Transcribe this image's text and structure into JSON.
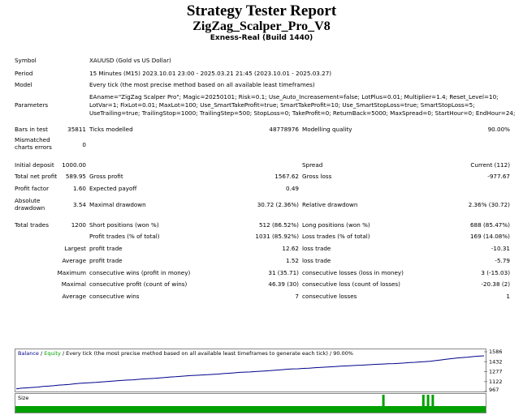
{
  "header": {
    "title": "Strategy Tester Report",
    "subtitle": "ZigZag_Scalper_Pro_V8",
    "server": "Exness-Real (Build 1440)"
  },
  "info": {
    "symbol_label": "Symbol",
    "symbol": "XAUUSD (Gold vs US Dollar)",
    "period_label": "Period",
    "period": "15 Minutes (M15) 2023.10.01 23:00 - 2025.03.21 21:45 (2023.10.01 - 2025.03.27)",
    "model_label": "Model",
    "model": "Every tick (the most precise method based on all available least timeframes)",
    "parameters_label": "Parameters",
    "parameters_line1": "EAname=\"ZigZag Scalper Pro\"; Magic=20250101; Risk=0.1; Use_Auto_Increasement=false; LotPlus=0.01; Multiplier=1.4; Reset_Level=10;",
    "parameters_line2": "LotVar=1; FixLot=0.01; MaxLot=100; Use_SmartTakeProfit=true; SmartTakeProfit=10; Use_SmartStopLoss=true; SmartStopLoss=5;",
    "parameters_line3": "UseTrailing=true; TrailingStop=1000; TrailingStep=500; StopLoss=0; TakeProfit=0; ReturnBack=5000; MaxSpread=0; StartHour=0; EndHour=24;"
  },
  "stats": {
    "bars_label": "Bars in test",
    "bars": "35811",
    "ticks_label": "Ticks modelled",
    "ticks": "48778976",
    "quality_label": "Modelling quality",
    "quality": "90.00%",
    "mismatched_label": "Mismatched charts errors",
    "mismatched": "0",
    "deposit_label": "Initial deposit",
    "deposit": "1000.00",
    "spread_label": "Spread",
    "spread": "Current (112)",
    "netprofit_label": "Total net profit",
    "netprofit": "589.95",
    "grossprofit_label": "Gross profit",
    "grossprofit": "1567.62",
    "grossloss_label": "Gross loss",
    "grossloss": "-977.67",
    "pf_label": "Profit factor",
    "pf": "1.60",
    "payoff_label": "Expected payoff",
    "payoff": "0.49",
    "absdd_label": "Absolute drawdown",
    "absdd": "3.54",
    "maxdd_label": "Maximal drawdown",
    "maxdd": "30.72 (2.36%)",
    "reldd_label": "Relative drawdown",
    "reldd": "2.36% (30.72)",
    "trades_label": "Total trades",
    "trades": "1200",
    "short_label": "Short positions (won %)",
    "short": "512 (86.52%)",
    "long_label": "Long positions (won %)",
    "long": "688 (85.47%)",
    "profit_trades_label": "Profit trades (% of total)",
    "profit_trades": "1031 (85.92%)",
    "loss_trades_label": "Loss trades (% of total)",
    "loss_trades": "169 (14.08%)",
    "largest_label": "Largest",
    "largest_profit_label": "profit trade",
    "largest_profit": "12.62",
    "largest_loss_label": "loss trade",
    "largest_loss": "-10.31",
    "average_label": "Average",
    "average_profit_label": "profit trade",
    "average_profit": "1.52",
    "average_loss_label": "loss trade",
    "average_loss": "-5.79",
    "maximum_label": "Maximum",
    "max_cons_wins_label": "consecutive wins (profit in money)",
    "max_cons_wins": "31 (35.71)",
    "max_cons_losses_label": "consecutive losses (loss in money)",
    "max_cons_losses": "3 (-15.03)",
    "maximal_label": "Maximal",
    "maximal_cons_profit_label": "consecutive profit (count of wins)",
    "maximal_cons_profit": "46.39 (30)",
    "maximal_cons_loss_label": "consecutive loss (count of losses)",
    "maximal_cons_loss": "-20.38 (2)",
    "avg_label": "Average",
    "avg_cons_wins_label": "consecutive wins",
    "avg_cons_wins": "7",
    "avg_cons_losses_label": "consecutive losses",
    "avg_cons_losses": "1"
  },
  "chart_data": {
    "type": "line",
    "legend_balance": "Balance",
    "legend_sep": " / ",
    "legend_equity": "Equity",
    "legend_rest": " / Every tick (the most precise method based on all available least timeframes to generate each tick) / 90.00%",
    "yticks": [
      "1586",
      "1432",
      "1277",
      "1122",
      "967"
    ],
    "ylim": [
      967,
      1600
    ],
    "balance_color": "#00008b",
    "equity_color": "#00b000",
    "series": [
      {
        "name": "Balance",
        "y": [
          1000,
          1012,
          1018,
          1025,
          1030,
          1042,
          1048,
          1055,
          1066,
          1071,
          1078,
          1090,
          1098,
          1104,
          1110,
          1114,
          1121,
          1128,
          1137,
          1142,
          1150,
          1156,
          1160,
          1168,
          1175,
          1182,
          1186,
          1195,
          1202,
          1210,
          1214,
          1222,
          1230,
          1236,
          1240,
          1246,
          1252,
          1256,
          1262,
          1270,
          1276,
          1284,
          1292,
          1297,
          1300,
          1306,
          1312,
          1318,
          1325,
          1333,
          1340,
          1348,
          1354,
          1356,
          1362,
          1366,
          1372,
          1378,
          1384,
          1390,
          1396,
          1402,
          1406,
          1412,
          1418,
          1420,
          1426,
          1430,
          1436,
          1440,
          1446,
          1448,
          1452,
          1458,
          1466,
          1470,
          1478,
          1484,
          1490,
          1502,
          1514,
          1526,
          1536,
          1548,
          1556,
          1562,
          1572,
          1580,
          1586
        ]
      }
    ]
  },
  "size_chart": {
    "label": "Size",
    "fill_color": "#00a000",
    "spike_positions": [
      0.78,
      0.865,
      0.875,
      0.885
    ]
  }
}
